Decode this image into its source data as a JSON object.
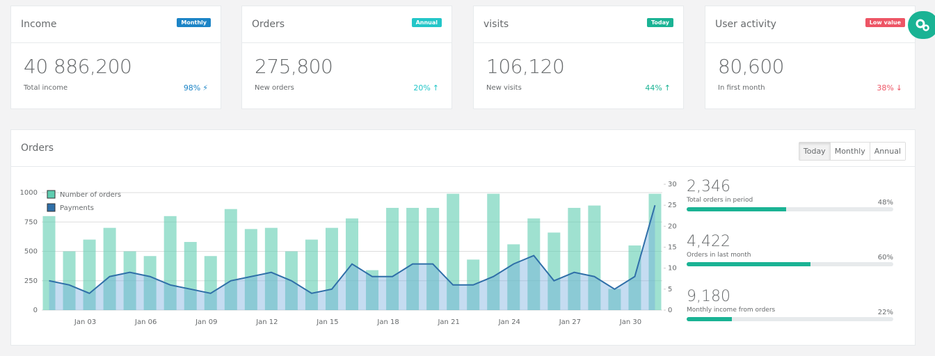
{
  "cards": [
    {
      "title": "Income",
      "badge": "Monthly",
      "badge_color": "#1c84c6",
      "value": "40 886,200",
      "caption": "Total income",
      "percent": "98%",
      "percent_color": "#1c84c6",
      "icon": "⚡"
    },
    {
      "title": "Orders",
      "badge": "Annual",
      "badge_color": "#23c6c8",
      "value": "275,800",
      "caption": "New orders",
      "percent": "20%",
      "percent_color": "#23c6c8",
      "icon": "↑"
    },
    {
      "title": "visits",
      "badge": "Today",
      "badge_color": "#1ab394",
      "value": "106,120",
      "caption": "New visits",
      "percent": "44%",
      "percent_color": "#1ab394",
      "icon": "↑"
    },
    {
      "title": "User activity",
      "badge": "Low value",
      "badge_color": "#ed5565",
      "value": "80,600",
      "caption": "In first month",
      "percent": "38%",
      "percent_color": "#ed5565",
      "icon": "↓"
    }
  ],
  "panel": {
    "title": "Orders",
    "tabs": [
      "Today",
      "Monthly",
      "Annual"
    ],
    "stats": [
      {
        "value": "2,346",
        "label": "Total orders in period",
        "percent": "48%"
      },
      {
        "value": "4,422",
        "label": "Orders in last month",
        "percent": "60%"
      },
      {
        "value": "9,180",
        "label": "Monthly income from orders",
        "percent": "22%"
      }
    ]
  },
  "chart_data": {
    "type": "bar",
    "categories": [
      null,
      null,
      "Jan 03",
      null,
      null,
      "Jan 06",
      null,
      null,
      "Jan 09",
      null,
      null,
      "Jan 12",
      null,
      null,
      "Jan 15",
      null,
      null,
      "Jan 18",
      null,
      null,
      "Jan 21",
      null,
      null,
      "Jan 24",
      null,
      null,
      "Jan 27",
      null,
      null,
      "Jan 30",
      null
    ],
    "series": [
      {
        "name": "Number of orders",
        "color": "#5fcdb0",
        "values": [
          800,
          500,
          600,
          700,
          500,
          460,
          800,
          580,
          460,
          860,
          690,
          700,
          500,
          600,
          700,
          780,
          340,
          870,
          870,
          870,
          990,
          430,
          990,
          560,
          780,
          660,
          870,
          890,
          180,
          550,
          990
        ]
      },
      {
        "name": "Payments",
        "color": "#2f6fa8",
        "axis": "y2",
        "values": [
          7,
          6,
          4,
          8,
          9,
          8,
          6,
          5,
          4,
          7,
          8,
          9,
          7,
          4,
          5,
          11,
          8,
          8,
          11,
          11,
          6,
          6,
          8,
          11,
          13,
          7,
          9,
          8,
          5,
          8,
          25
        ]
      }
    ],
    "ylim": [
      0,
      1000
    ],
    "yticks": [
      0,
      250,
      500,
      750,
      1000
    ],
    "y2lim": [
      0,
      30
    ],
    "y2ticks": [
      0,
      5,
      10,
      15,
      20,
      25,
      30
    ],
    "grid": true
  }
}
